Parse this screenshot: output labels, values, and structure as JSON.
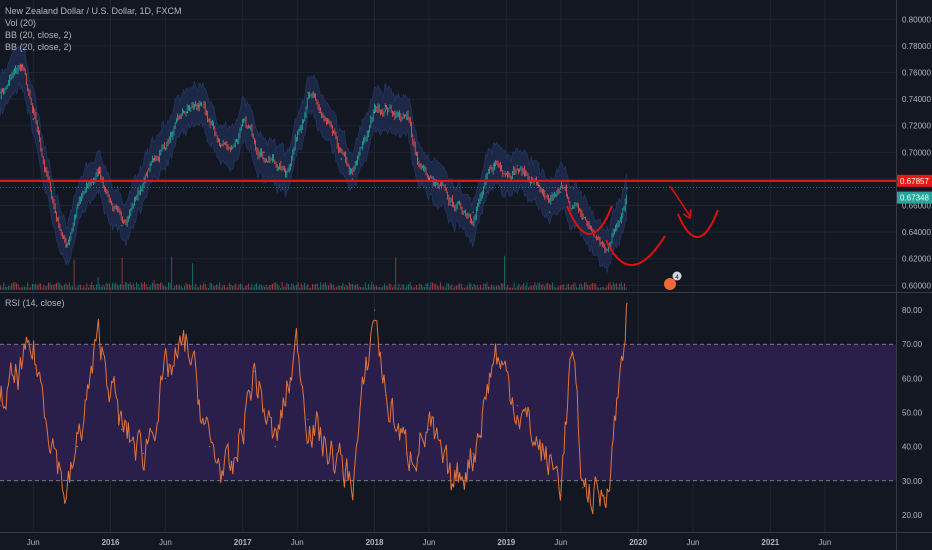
{
  "legend": {
    "symbol": "New Zealand Dollar / U.S. Dollar, 1D, FXCM",
    "vol": "Vol (20)",
    "bb1": "BB (20, close, 2)",
    "bb2": "BB (20, close, 2)",
    "rsi": "RSI (14, close)"
  },
  "colors": {
    "background": "#131722",
    "resistance_line": "#e61919",
    "rsi_line": "#e2733a",
    "rsi_band": "#2a1f4a",
    "bb_fill": "#1e2a4a",
    "up_candle": "#26a69a",
    "down_candle": "#ef5350",
    "annotation": "#e01010"
  },
  "price_badges": {
    "resistance": "0.67857",
    "last": "0.67348"
  },
  "event_badge": "4",
  "chart_data": [
    {
      "type": "line",
      "title": "New Zealand Dollar / U.S. Dollar, 1D, FXCM",
      "ylim": [
        0.595,
        0.81
      ],
      "y_ticks": [
        "0.80000",
        "0.78000",
        "0.76000",
        "0.74000",
        "0.72000",
        "0.70000",
        "0.68000",
        "0.66000",
        "0.64000",
        "0.62000",
        "0.60000"
      ],
      "x_ticks": [
        "Jun",
        "2016",
        "Jun",
        "2017",
        "Jun",
        "2018",
        "Jun",
        "2019",
        "Jun",
        "2020",
        "Jun",
        "2021",
        "Jun"
      ],
      "x": [
        "2015-03",
        "2015-05",
        "2015-06",
        "2015-08",
        "2015-09",
        "2015-10",
        "2015-12",
        "2016-02",
        "2016-05",
        "2016-08",
        "2016-09",
        "2016-11",
        "2016-12",
        "2017-01",
        "2017-03",
        "2017-05",
        "2017-07",
        "2017-08",
        "2017-10",
        "2017-11",
        "2018-01",
        "2018-02",
        "2018-04",
        "2018-05",
        "2018-06",
        "2018-08",
        "2018-10",
        "2018-12",
        "2019-02",
        "2019-04",
        "2019-05",
        "2019-06",
        "2019-08",
        "2019-10",
        "2019-11",
        "2019-12"
      ],
      "series": [
        {
          "values": [
            0.745,
            0.765,
            0.725,
            0.655,
            0.63,
            0.66,
            0.685,
            0.645,
            0.695,
            0.73,
            0.735,
            0.705,
            0.705,
            0.72,
            0.7,
            0.685,
            0.745,
            0.73,
            0.695,
            0.68,
            0.73,
            0.735,
            0.725,
            0.695,
            0.68,
            0.66,
            0.655,
            0.69,
            0.69,
            0.675,
            0.655,
            0.67,
            0.65,
            0.625,
            0.645,
            0.673
          ]
        }
      ],
      "horizontal_line": 0.67857,
      "last_value": 0.67348
    },
    {
      "type": "line",
      "title": "RSI (14, close)",
      "ylim": [
        15,
        85
      ],
      "y_ticks": [
        "80.00",
        "70.00",
        "60.00",
        "50.00",
        "40.00",
        "30.00",
        "20.00"
      ],
      "band": [
        30,
        70
      ],
      "x": [
        "2015-03",
        "2015-06",
        "2015-09",
        "2015-10",
        "2015-12",
        "2016-02",
        "2016-04",
        "2016-06",
        "2016-08",
        "2016-10",
        "2016-12",
        "2017-02",
        "2017-04",
        "2017-06",
        "2017-07",
        "2017-09",
        "2017-11",
        "2018-01",
        "2018-02",
        "2018-04",
        "2018-06",
        "2018-08",
        "2018-10",
        "2018-12",
        "2019-02",
        "2019-04",
        "2019-06",
        "2019-07",
        "2019-08",
        "2019-10",
        "2019-11",
        "2019-12"
      ],
      "series": [
        {
          "values": [
            52,
            68,
            25,
            40,
            72,
            45,
            38,
            60,
            70,
            40,
            30,
            62,
            40,
            70,
            48,
            38,
            30,
            80,
            55,
            38,
            45,
            28,
            38,
            68,
            52,
            40,
            30,
            68,
            28,
            25,
            50,
            82
          ]
        }
      ]
    }
  ]
}
